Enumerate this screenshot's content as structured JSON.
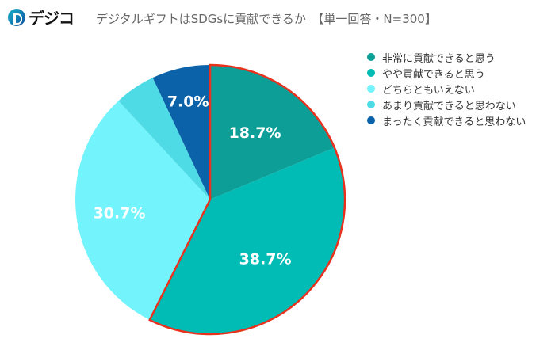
{
  "logo": {
    "text": "デジコ"
  },
  "title": "デジタルギフトはSDGsに貢献できるか　【単一回答・N=300】",
  "chart_data": {
    "type": "pie",
    "title": "デジタルギフトはSDGsに貢献できるか　【単一回答・N=300】",
    "start": "12 o'clock, clockwise",
    "legend_position": "right",
    "categories": [
      "非常に貢献できると思う",
      "やや貢献できると思う",
      "どちらともいえない",
      "あまり貢献できると思わない",
      "まったく貢献できると思わない"
    ],
    "values": [
      18.7,
      38.7,
      30.7,
      4.9,
      7.0
    ],
    "labels": [
      "18.7%",
      "38.7%",
      "30.7%",
      "",
      "7.0%"
    ],
    "colors": [
      "#0e9e98",
      "#00bcb5",
      "#73f3fb",
      "#4fdbe6",
      "#0b62a8"
    ],
    "highlight": {
      "categories": [
        "非常に貢献できると思う",
        "やや貢献できると思う"
      ],
      "outline_color": "#e8321e"
    }
  }
}
